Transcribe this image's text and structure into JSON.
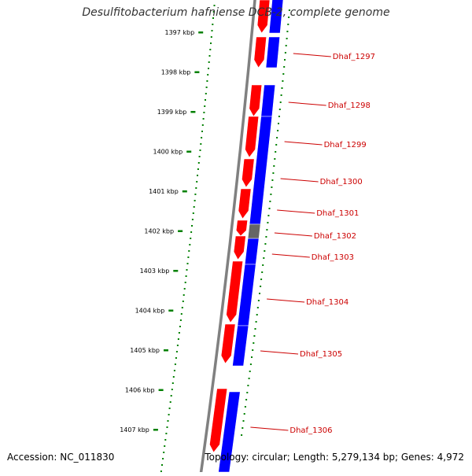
{
  "title": "Desulfitobacterium hafniense DCB-2, complete genome",
  "footer": {
    "accession": "Accession: NC_011830",
    "summary": "Topology: circular; Length: 5,279,134 bp; Genes: 4,972"
  },
  "colors": {
    "forward_strand": "#ff0000",
    "reverse_strand": "#0000ff",
    "other_feature": "#666666",
    "backbone": "#808080",
    "ruler": "#008000",
    "gene_label": "#cc0000"
  },
  "ruler": {
    "unit": "kbp",
    "ticks": [
      "1397 kbp",
      "1398 kbp",
      "1399 kbp",
      "1400 kbp",
      "1401 kbp",
      "1402 kbp",
      "1403 kbp",
      "1404 kbp",
      "1405 kbp",
      "1406 kbp",
      "1407 kbp"
    ]
  },
  "gene_labels": [
    "Dhaf_1297",
    "Dhaf_1298",
    "Dhaf_1299",
    "Dhaf_1300",
    "Dhaf_1301",
    "Dhaf_1302",
    "Dhaf_1303",
    "Dhaf_1304",
    "Dhaf_1305",
    "Dhaf_1306"
  ]
}
